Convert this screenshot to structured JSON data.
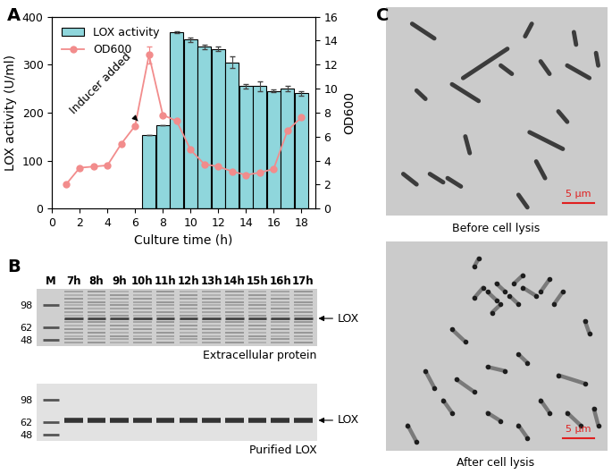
{
  "chart_data": {
    "type": "bar",
    "panel": "A",
    "xlabel": "Culture time (h)",
    "ylabel": "LOX activity (U/ml)",
    "y2label": "OD600",
    "xlim": [
      0,
      19
    ],
    "xticks": [
      0,
      2,
      4,
      6,
      8,
      10,
      12,
      14,
      16,
      18
    ],
    "ylim": [
      0,
      400
    ],
    "yticks": [
      0,
      100,
      200,
      300,
      400
    ],
    "y2lim": [
      0,
      16
    ],
    "y2ticks": [
      0,
      2,
      4,
      6,
      8,
      10,
      12,
      14,
      16
    ],
    "legend": "upper left",
    "series": [
      {
        "name": "LOX activity",
        "type": "bar",
        "color": "#8fd6dc",
        "x": [
          7,
          8,
          9,
          10,
          11,
          12,
          13,
          14,
          15,
          16,
          17,
          18
        ],
        "values": [
          153,
          173,
          367,
          352,
          337,
          333,
          305,
          255,
          255,
          245,
          250,
          240
        ],
        "error": [
          0,
          0,
          2,
          5,
          4,
          5,
          12,
          5,
          10,
          3,
          5,
          5
        ]
      },
      {
        "name": "OD600",
        "type": "line",
        "axis": "y2",
        "color": "#f28c8c",
        "marker": "circle",
        "line_style": "solid",
        "x": [
          1,
          2,
          3,
          4,
          5,
          6,
          7,
          8,
          9,
          10,
          11,
          12,
          13,
          14,
          15,
          16,
          17,
          18
        ],
        "values": [
          2.0,
          3.4,
          3.5,
          3.6,
          5.4,
          6.9,
          12.8,
          7.8,
          7.3,
          4.9,
          3.7,
          3.5,
          3.1,
          2.8,
          3.0,
          3.3,
          6.5,
          7.6
        ],
        "error": [
          0,
          0,
          0,
          0,
          0,
          0,
          0.7,
          0,
          0,
          0,
          0,
          0,
          0,
          0,
          0,
          0,
          0,
          0
        ]
      }
    ],
    "annotations": [
      {
        "text": "Inducer added",
        "x": 6.2,
        "y": 7.3,
        "axis": "y2"
      }
    ]
  },
  "gel_panel": {
    "panel": "B",
    "lanes": [
      "M",
      "7h",
      "8h",
      "9h",
      "10h",
      "11h",
      "12h",
      "13h",
      "14h",
      "15h",
      "16h",
      "17h"
    ],
    "marker_kda": [
      98,
      62,
      48
    ],
    "kda_range": [
      42,
      135
    ],
    "gels": [
      {
        "caption": "Extracellular protein",
        "band_label": "LOX",
        "band_kda": 74
      },
      {
        "caption": "Purified LOX",
        "band_label": "LOX",
        "band_kda": 64
      }
    ]
  },
  "micrograph_panel": {
    "panel": "C",
    "scale_bar": "5 μm",
    "images": [
      {
        "caption": "Before cell lysis"
      },
      {
        "caption": "After cell lysis"
      }
    ]
  }
}
